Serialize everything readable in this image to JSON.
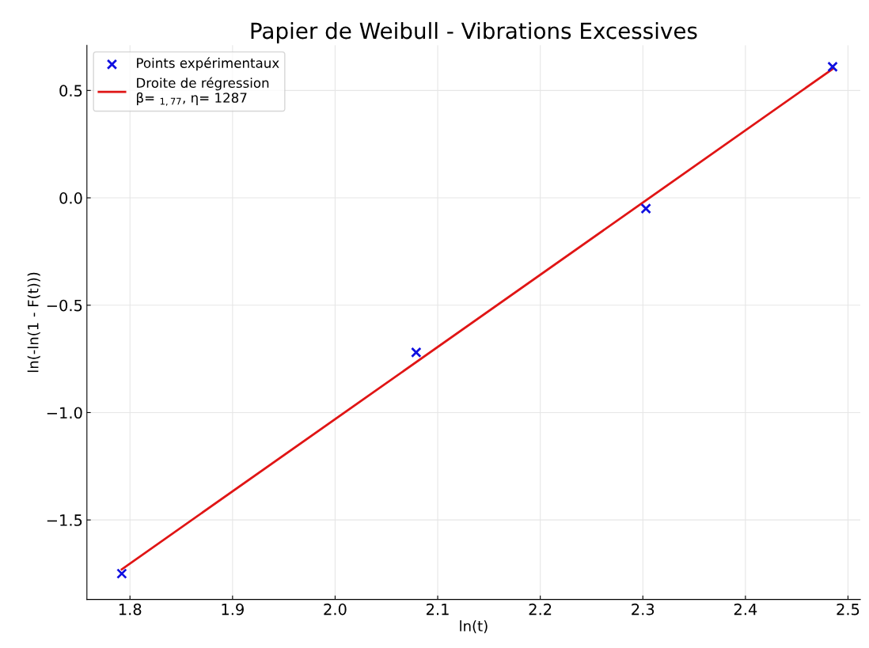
{
  "chart_data": {
    "type": "scatter",
    "title": "Papier de Weibull - Vibrations Excessives",
    "xlabel": "ln(t)",
    "ylabel": "ln(-ln(1 - F(t)))",
    "series": [
      {
        "name": "Points expérimentaux",
        "marker": "cross",
        "color": "#1010e0",
        "x": [
          1.792,
          2.079,
          2.303,
          2.485
        ],
        "values": [
          -1.75,
          -0.72,
          -0.05,
          0.61
        ]
      },
      {
        "name": "Droite de régression\nβ= $_{1,77}$, η= 1287",
        "type": "line",
        "line_style": "solid",
        "color": "#e01515",
        "x": [
          1.792,
          2.485
        ],
        "values": [
          -1.73,
          0.6
        ]
      }
    ],
    "xlim": [
      1.758,
      2.512
    ],
    "ylim": [
      -1.87,
      0.71
    ],
    "xticks": [
      1.8,
      1.9,
      {
        "value": 2.0,
        "label": "2.0"
      },
      2.1,
      2.2,
      2.3,
      2.4,
      2.5
    ],
    "yticks": [
      {
        "value": -1.5,
        "label": "−1.5"
      },
      {
        "value": -1.0,
        "label": "−1.0"
      },
      {
        "value": -0.5,
        "label": "−0.5"
      },
      {
        "value": 0.0,
        "label": "0.0"
      },
      {
        "value": 0.5,
        "label": "0.5"
      }
    ],
    "grid": true,
    "legend": "top left"
  }
}
